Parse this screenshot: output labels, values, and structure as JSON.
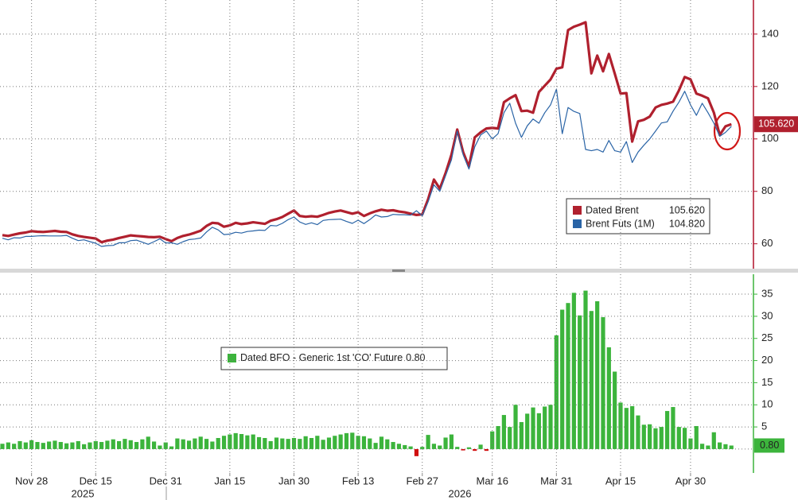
{
  "chart_data": [
    {
      "type": "line",
      "ylim": [
        50.5,
        153
      ],
      "yticks": [
        60,
        80,
        100,
        120,
        140
      ],
      "grid": true,
      "axis_color": "#b0102a",
      "series": [
        {
          "name": "Dated Brent",
          "color": "#b0202e",
          "width": 3.2,
          "values": [
            63.3,
            63,
            63.5,
            64,
            64.3,
            64.8,
            64.6,
            64.5,
            64.7,
            64.9,
            64.6,
            64.5,
            63.6,
            63,
            62.6,
            62.3,
            62,
            60.6,
            61.2,
            61.6,
            62.2,
            62.7,
            63.2,
            63,
            62.8,
            62.6,
            62.5,
            62.7,
            61.8,
            61,
            62.2,
            63,
            63.5,
            64.2,
            65,
            66.8,
            68,
            67.8,
            66.5,
            67,
            68,
            67.5,
            67.8,
            68.2,
            67.9,
            67.6,
            68.8,
            69.4,
            70.2,
            71.5,
            72.7,
            70.6,
            70.3,
            70.5,
            70.3,
            71,
            71.8,
            72.3,
            72.7,
            72.1,
            71.5,
            72,
            70.6,
            71.6,
            72.4,
            73,
            72.6,
            72.8,
            72.3,
            72,
            71.5,
            71,
            71.2,
            77,
            84.5,
            81,
            87,
            94,
            103.6,
            95,
            89.4,
            100.6,
            102.5,
            104,
            104.2,
            104,
            114,
            115.5,
            116.7,
            110.6,
            110.8,
            110,
            117.9,
            120.3,
            122.7,
            126.8,
            127.3,
            141.5,
            142.8,
            143.6,
            144.5,
            125,
            131.8,
            125.8,
            132.4,
            125,
            117.3,
            117.5,
            99,
            106.7,
            107.3,
            108.5,
            112,
            113,
            113.5,
            114.2,
            118.5,
            123.6,
            122.7,
            117.3,
            116.5,
            115.5,
            110,
            101.5,
            104.8,
            105.62
          ],
          "value_labels": [
            null,
            null,
            null,
            null,
            null,
            null,
            null,
            null,
            null,
            null,
            null,
            null,
            null,
            null,
            null,
            null,
            null,
            null,
            null,
            null,
            null,
            null,
            null,
            null,
            null,
            null,
            null,
            null,
            null,
            null,
            null,
            null,
            null,
            null,
            null,
            null,
            null,
            null,
            null,
            null,
            null,
            null,
            null,
            null,
            null,
            null,
            null,
            null,
            null,
            null,
            null,
            null,
            null,
            null,
            null,
            null,
            null,
            null,
            null,
            null,
            null,
            null,
            null,
            null,
            null,
            null,
            null,
            null,
            null,
            null,
            null,
            null,
            null,
            null,
            null,
            null,
            null,
            null,
            null,
            null,
            null,
            null,
            null,
            null,
            null,
            null,
            null,
            null,
            null,
            null,
            null,
            null,
            null,
            null,
            null,
            null,
            null,
            null,
            null,
            null,
            null,
            null,
            null,
            null,
            null,
            null,
            null,
            null,
            null,
            null,
            null,
            null,
            null,
            null,
            null,
            null,
            null,
            null,
            null,
            null,
            null,
            null,
            null,
            null,
            null,
            "105.620"
          ]
        },
        {
          "name": "Brent Futs (1M)",
          "color": "#2a64a6",
          "width": 1.2,
          "values": [
            62.1,
            61.5,
            62.3,
            62.2,
            62.8,
            62.8,
            63.0,
            63.1,
            63.0,
            63.0,
            63.0,
            63.2,
            62.1,
            61.2,
            61.5,
            60.8,
            60.2,
            59.0,
            59.3,
            59.4,
            60.4,
            60.4,
            61.2,
            61.4,
            60.6,
            59.8,
            60.8,
            61.9,
            60.3,
            60.4,
            59.8,
            60.8,
            61.6,
            61.8,
            62.2,
            64.5,
            66.3,
            65.3,
            63.5,
            63.7,
            64.4,
            64.1,
            64.7,
            64.9,
            65.2,
            65.1,
            67.0,
            66.8,
            67.8,
            69.2,
            70.2,
            68.3,
            67.4,
            68.0,
            67.3,
            68.9,
            69.2,
            69.3,
            69.4,
            68.5,
            67.8,
            69.0,
            67.7,
            69.2,
            71.0,
            70.2,
            70.4,
            71.2,
            71.1,
            71.1,
            70.9,
            72.6,
            70.7,
            76,
            82.5,
            80,
            86,
            92,
            103,
            94,
            88.5,
            97,
            101.5,
            103,
            100,
            102,
            110,
            113.6,
            106,
            100.6,
            105,
            107.6,
            106,
            110,
            113,
            119,
            102,
            112,
            110.5,
            109.7,
            96,
            95.5,
            96,
            95,
            99.4,
            95.5,
            95,
            99,
            91,
            95,
            97.6,
            100,
            103,
            106.1,
            106.5,
            110.6,
            114,
            118.2,
            113,
            109,
            113.6,
            110,
            106,
            101,
            102.5,
            104.82
          ],
          "value_labels": [
            null,
            null,
            null,
            null,
            null,
            null,
            null,
            null,
            null,
            null,
            null,
            null,
            null,
            null,
            null,
            null,
            null,
            null,
            null,
            null,
            null,
            null,
            null,
            null,
            null,
            null,
            null,
            null,
            null,
            null,
            null,
            null,
            null,
            null,
            null,
            null,
            null,
            null,
            null,
            null,
            null,
            null,
            null,
            null,
            null,
            null,
            null,
            null,
            null,
            null,
            null,
            null,
            null,
            null,
            null,
            null,
            null,
            null,
            null,
            null,
            null,
            null,
            null,
            null,
            null,
            null,
            null,
            null,
            null,
            null,
            null,
            null,
            null,
            null,
            null,
            null,
            null,
            null,
            null,
            null,
            null,
            null,
            null,
            null,
            null,
            null,
            null,
            null,
            null,
            null,
            null,
            null,
            null,
            null,
            null,
            null,
            null,
            null,
            null,
            null,
            null,
            null,
            null,
            null,
            null,
            null,
            null,
            null,
            null,
            null,
            null,
            null,
            null,
            null,
            null,
            null,
            null,
            null,
            null,
            null,
            null,
            null,
            null,
            null,
            null,
            "104.820"
          ]
        }
      ]
    },
    {
      "type": "bar",
      "ylim": [
        -5.4,
        39.5
      ],
      "yticks": [
        5,
        10,
        15,
        20,
        25,
        30,
        35
      ],
      "grid": true,
      "axis_color": "#3cb43c",
      "categories": [
        null,
        null,
        null,
        null,
        null,
        "Nov 28",
        null,
        null,
        null,
        null,
        null,
        null,
        null,
        null,
        null,
        null,
        "Dec 15",
        null,
        null,
        null,
        null,
        null,
        null,
        null,
        null,
        null,
        null,
        null,
        "Dec 31",
        null,
        null,
        null,
        null,
        null,
        null,
        null,
        null,
        null,
        null,
        "Jan 15",
        null,
        null,
        null,
        null,
        null,
        null,
        null,
        null,
        null,
        null,
        "Jan 30",
        null,
        null,
        null,
        null,
        null,
        null,
        null,
        null,
        null,
        null,
        "Feb 13",
        null,
        null,
        null,
        null,
        null,
        null,
        null,
        null,
        null,
        null,
        "Feb 27",
        null,
        null,
        null,
        null,
        null,
        null,
        null,
        null,
        null,
        null,
        null,
        "Mar 16",
        null,
        null,
        null,
        null,
        null,
        null,
        null,
        null,
        null,
        null,
        "Mar 31",
        null,
        null,
        null,
        null,
        null,
        null,
        null,
        null,
        null,
        null,
        "Apr 15",
        null,
        null,
        null,
        null,
        null,
        null,
        null,
        null,
        null,
        null,
        null,
        "Apr 30",
        null,
        null,
        null,
        null,
        null,
        null,
        null
      ],
      "years": [
        "2025",
        "2026"
      ],
      "series": [
        {
          "name": "Dated BFO - Generic 1st 'CO' Future",
          "color": "#3cb43c",
          "negative_color": "#d01010",
          "values": [
            1.2,
            1.5,
            1.2,
            1.8,
            1.5,
            2.0,
            1.6,
            1.4,
            1.7,
            1.9,
            1.6,
            1.3,
            1.5,
            1.8,
            1.1,
            1.5,
            1.8,
            1.6,
            1.9,
            2.2,
            1.8,
            2.3,
            2.0,
            1.6,
            2.2,
            2.8,
            1.7,
            0.8,
            1.5,
            0.6,
            2.4,
            2.2,
            1.9,
            2.4,
            2.8,
            2.3,
            1.7,
            2.5,
            3.0,
            3.3,
            3.6,
            3.4,
            3.1,
            3.3,
            2.7,
            2.5,
            1.8,
            2.6,
            2.4,
            2.3,
            2.5,
            2.3,
            2.9,
            2.5,
            3.0,
            2.1,
            2.6,
            3.0,
            3.3,
            3.6,
            3.7,
            3.0,
            2.9,
            2.4,
            1.4,
            2.8,
            2.2,
            1.6,
            1.2,
            0.9,
            0.6,
            -1.6,
            0.5,
            3.2,
            1.2,
            0.8,
            2.6,
            3.3,
            0.5,
            -0.3,
            0.4,
            -0.4,
            1.0,
            -0.4,
            4.0,
            5.2,
            7.7,
            5.0,
            10.0,
            6.1,
            8.0,
            9.4,
            8.1,
            9.6,
            10.0,
            25.7,
            31.5,
            33.0,
            35.3,
            30.2,
            35.8,
            31.2,
            33.4,
            29.8,
            23.0,
            17.5,
            10.5,
            9.3,
            9.7,
            7.6,
            5.5,
            5.6,
            4.7,
            5.0,
            8.6,
            9.5,
            5.0,
            4.8,
            2.4,
            5.2,
            1.2,
            0.8,
            3.8,
            1.5,
            1.1,
            0.8
          ],
          "value_labels": [
            null,
            null,
            null,
            null,
            null,
            null,
            null,
            null,
            null,
            null,
            null,
            null,
            null,
            null,
            null,
            null,
            null,
            null,
            null,
            null,
            null,
            null,
            null,
            null,
            null,
            null,
            null,
            null,
            null,
            null,
            null,
            null,
            null,
            null,
            null,
            null,
            null,
            null,
            null,
            null,
            null,
            null,
            null,
            null,
            null,
            null,
            null,
            null,
            null,
            null,
            null,
            null,
            null,
            null,
            null,
            null,
            null,
            null,
            null,
            null,
            null,
            null,
            null,
            null,
            null,
            null,
            null,
            null,
            null,
            null,
            null,
            null,
            null,
            null,
            null,
            null,
            null,
            null,
            null,
            null,
            null,
            null,
            null,
            null,
            null,
            null,
            null,
            null,
            null,
            null,
            null,
            null,
            null,
            null,
            null,
            null,
            null,
            null,
            null,
            null,
            null,
            null,
            null,
            null,
            null,
            null,
            null,
            null,
            null,
            null,
            null,
            null,
            null,
            null,
            null,
            null,
            null,
            null,
            null,
            null,
            null,
            null,
            null,
            null,
            null,
            "0.80"
          ]
        }
      ]
    }
  ]
}
